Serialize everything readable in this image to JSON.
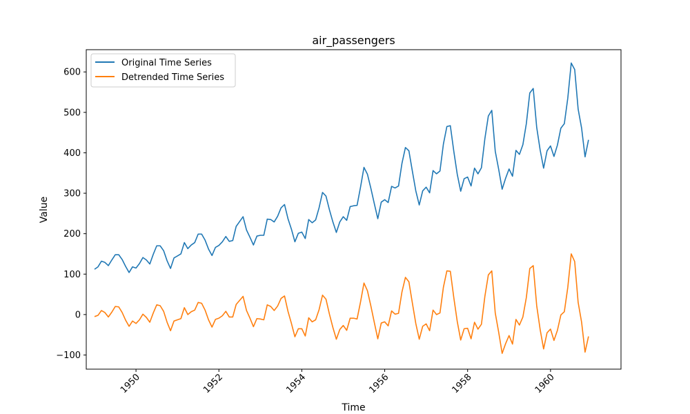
{
  "chart_data": {
    "type": "line",
    "title": "air_passengers",
    "xlabel": "Time",
    "ylabel": "Value",
    "xlim": [
      1948.8,
      1961.7
    ],
    "ylim": [
      -135,
      655
    ],
    "x_ticks": [
      1950,
      1952,
      1954,
      1956,
      1958,
      1960
    ],
    "x_tick_labels": [
      "1950",
      "1952",
      "1954",
      "1956",
      "1958",
      "1960"
    ],
    "y_ticks": [
      -100,
      0,
      100,
      200,
      300,
      400,
      500,
      600
    ],
    "y_tick_labels": [
      "−100",
      "0",
      "100",
      "200",
      "300",
      "400",
      "500",
      "600"
    ],
    "grid": false,
    "legend_position": "top-left",
    "x_start": 1949.0,
    "x_step": 0.08333,
    "series": [
      {
        "name": "Original Time Series",
        "color": "#1f77b4",
        "values": [
          112,
          118,
          132,
          129,
          121,
          135,
          148,
          148,
          136,
          119,
          104,
          118,
          115,
          126,
          141,
          135,
          125,
          149,
          170,
          170,
          158,
          133,
          114,
          140,
          145,
          150,
          178,
          163,
          172,
          178,
          199,
          199,
          184,
          162,
          146,
          166,
          171,
          180,
          193,
          181,
          183,
          218,
          230,
          242,
          209,
          191,
          172,
          194,
          196,
          196,
          236,
          235,
          229,
          243,
          264,
          272,
          237,
          211,
          180,
          201,
          204,
          188,
          235,
          227,
          234,
          264,
          302,
          293,
          259,
          229,
          203,
          229,
          242,
          233,
          267,
          269,
          270,
          315,
          364,
          347,
          312,
          274,
          237,
          278,
          284,
          277,
          317,
          313,
          318,
          374,
          413,
          405,
          355,
          306,
          271,
          306,
          315,
          301,
          356,
          348,
          355,
          422,
          465,
          467,
          404,
          347,
          305,
          336,
          340,
          318,
          362,
          348,
          363,
          435,
          491,
          505,
          404,
          359,
          310,
          337,
          360,
          342,
          406,
          396,
          420,
          472,
          548,
          559,
          463,
          407,
          362,
          405,
          417,
          391,
          419,
          461,
          472,
          535,
          622,
          606,
          508,
          461,
          390,
          432
        ]
      },
      {
        "name": "Detrended Time Series",
        "color": "#ff7f0e",
        "values": [
          -5,
          -2,
          10,
          5,
          -6,
          6,
          20,
          19,
          5,
          -14,
          -29,
          -16,
          -22,
          -13,
          1,
          -7,
          -19,
          4,
          24,
          22,
          8,
          -19,
          -40,
          -16,
          -13,
          -10,
          17,
          0,
          7,
          11,
          30,
          28,
          11,
          -13,
          -31,
          -12,
          -9,
          -3,
          8,
          -6,
          -6,
          25,
          35,
          45,
          10,
          -9,
          -30,
          -10,
          -11,
          -13,
          24,
          20,
          10,
          21,
          40,
          46,
          8,
          -22,
          -55,
          -35,
          -35,
          -53,
          -8,
          -18,
          -13,
          12,
          48,
          38,
          1,
          -32,
          -61,
          -37,
          -27,
          -39,
          -9,
          -9,
          -11,
          31,
          78,
          59,
          21,
          -20,
          -60,
          -21,
          -18,
          -28,
          9,
          1,
          3,
          56,
          92,
          81,
          29,
          -22,
          -61,
          -29,
          -23,
          -40,
          11,
          0,
          4,
          68,
          108,
          107,
          42,
          -17,
          -63,
          -35,
          -34,
          -60,
          -19,
          -36,
          -24,
          45,
          98,
          108,
          4,
          -44,
          -96,
          -72,
          -52,
          -73,
          -12,
          -26,
          -6,
          42,
          114,
          121,
          22,
          -37,
          -85,
          -45,
          -36,
          -64,
          -39,
          -1,
          7,
          67,
          150,
          131,
          30,
          -19,
          -93,
          -54
        ]
      }
    ]
  }
}
